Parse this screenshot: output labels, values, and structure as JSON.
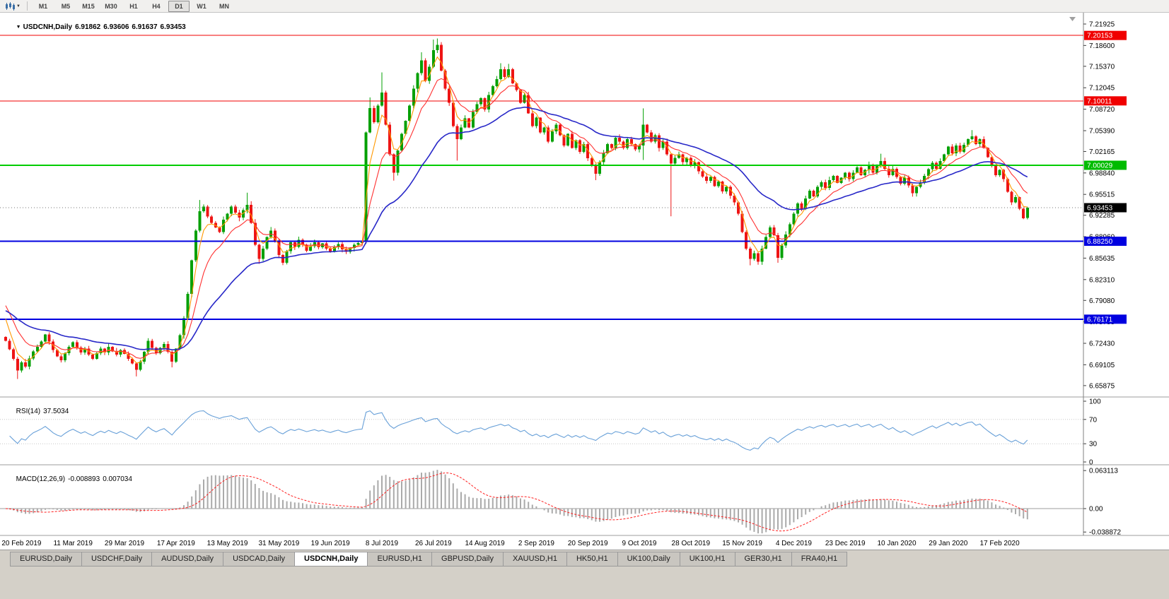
{
  "toolbar": {
    "timeframes": [
      "M1",
      "M5",
      "M15",
      "M30",
      "H1",
      "H4",
      "D1",
      "W1",
      "MN"
    ],
    "active_timeframe": "D1"
  },
  "chart": {
    "symbol_label": "USDCNH,Daily",
    "ohlc": {
      "open": "6.91862",
      "high": "6.93606",
      "low": "6.91637",
      "close": "6.93453"
    },
    "price_axis": [
      "7.21925",
      "7.18600",
      "7.15370",
      "7.12045",
      "7.08720",
      "7.05390",
      "7.02165",
      "6.98840",
      "6.95515",
      "6.92285",
      "6.88960",
      "6.85635",
      "6.82310",
      "6.79080",
      "6.75755",
      "6.72430",
      "6.69105",
      "6.65875"
    ],
    "levels": [
      {
        "name": "resistance-upper",
        "value": "7.20153",
        "price": 7.20153,
        "color": "#f00000",
        "box": "#f00000",
        "width": 1
      },
      {
        "name": "resistance-mid",
        "value": "7.10011",
        "price": 7.10011,
        "color": "#f00000",
        "box": "#f00000",
        "width": 1
      },
      {
        "name": "pivot-green",
        "value": "7.00029",
        "price": 7.00029,
        "color": "#00cc00",
        "box": "#00bb00",
        "width": 2
      },
      {
        "name": "current-price",
        "value": "6.93453",
        "price": 6.93453,
        "color": "#777777",
        "box": "#000000",
        "width": 1,
        "style": "dotted"
      },
      {
        "name": "support-upper",
        "value": "6.88250",
        "price": 6.8825,
        "color": "#0000e0",
        "box": "#0000e0",
        "width": 2
      },
      {
        "name": "support-lower",
        "value": "6.76171",
        "price": 6.76171,
        "color": "#0000e0",
        "box": "#0000e0",
        "width": 2
      }
    ]
  },
  "rsi": {
    "name": "RSI(14)",
    "value": "37.5034",
    "axis_labels": [
      "100",
      "70",
      "30",
      "0"
    ],
    "guide_levels": [
      70,
      30
    ]
  },
  "macd": {
    "name": "MACD(12,26,9)",
    "value": "-0.008893",
    "signal_value": "0.007034",
    "axis_labels": [
      "0.063113",
      "0.00",
      "-0.038872"
    ]
  },
  "tabs": [
    {
      "label": "EURUSD,Daily"
    },
    {
      "label": "USDCHF,Daily"
    },
    {
      "label": "AUDUSD,Daily"
    },
    {
      "label": "USDCAD,Daily"
    },
    {
      "label": "USDCNH,Daily",
      "active": true
    },
    {
      "label": "EURUSD,H1"
    },
    {
      "label": "GBPUSD,Daily"
    },
    {
      "label": "XAUUSD,H1"
    },
    {
      "label": "HK50,H1"
    },
    {
      "label": "UK100,Daily"
    },
    {
      "label": "UK100,H1"
    },
    {
      "label": "GER30,H1"
    },
    {
      "label": "FRA40,H1"
    }
  ],
  "chart_data": {
    "type": "candlestick",
    "symbol": "USDCNH",
    "timeframe": "Daily",
    "y_axis_range": [
      6.6455,
      7.228
    ],
    "x_axis_dates": [
      "20 Feb 2019",
      "11 Mar 2019",
      "29 Mar 2019",
      "17 Apr 2019",
      "13 May 2019",
      "31 May 2019",
      "19 Jun 2019",
      "8 Jul 2019",
      "26 Jul 2019",
      "14 Aug 2019",
      "2 Sep 2019",
      "20 Sep 2019",
      "9 Oct 2019",
      "28 Oct 2019",
      "15 Nov 2019",
      "4 Dec 2019",
      "23 Dec 2019",
      "10 Jan 2020",
      "29 Jan 2020",
      "17 Feb 2020"
    ],
    "closes": [
      6.728,
      6.715,
      6.7,
      6.682,
      6.695,
      6.688,
      6.701,
      6.712,
      6.719,
      6.727,
      6.738,
      6.727,
      6.714,
      6.704,
      6.698,
      6.709,
      6.719,
      6.726,
      6.718,
      6.71,
      6.716,
      6.707,
      6.7,
      6.709,
      6.716,
      6.71,
      6.719,
      6.712,
      6.707,
      6.714,
      6.708,
      6.7,
      6.693,
      6.683,
      6.696,
      6.711,
      6.728,
      6.717,
      6.709,
      6.717,
      6.723,
      6.711,
      6.696,
      6.716,
      6.737,
      6.763,
      6.801,
      6.853,
      6.899,
      6.929,
      6.936,
      6.921,
      6.911,
      6.904,
      6.897,
      6.916,
      6.925,
      6.936,
      6.927,
      6.919,
      6.931,
      6.939,
      6.911,
      6.877,
      6.855,
      6.871,
      6.889,
      6.899,
      6.883,
      6.861,
      6.849,
      6.867,
      6.881,
      6.874,
      6.885,
      6.877,
      6.868,
      6.875,
      6.881,
      6.873,
      6.879,
      6.871,
      6.866,
      6.873,
      6.878,
      6.87,
      6.866,
      6.872,
      6.877,
      6.88,
      6.882,
      7.051,
      7.089,
      7.067,
      7.093,
      7.113,
      7.063,
      7.017,
      6.989,
      7.023,
      7.049,
      7.069,
      7.093,
      7.119,
      7.143,
      7.163,
      7.131,
      7.153,
      7.179,
      7.187,
      7.147,
      7.119,
      7.097,
      7.061,
      7.041,
      7.059,
      7.073,
      7.059,
      7.083,
      7.095,
      7.104,
      7.087,
      7.109,
      7.123,
      7.134,
      7.149,
      7.137,
      7.149,
      7.127,
      7.117,
      7.097,
      7.109,
      7.081,
      7.061,
      7.074,
      7.051,
      7.059,
      7.037,
      7.053,
      7.063,
      7.047,
      7.031,
      7.049,
      7.027,
      7.039,
      7.021,
      7.033,
      7.011,
      7.001,
      6.987,
      7.005,
      7.019,
      7.033,
      7.027,
      7.043,
      7.037,
      7.027,
      7.041,
      7.033,
      7.025,
      7.031,
      7.063,
      7.051,
      7.037,
      7.047,
      7.027,
      7.037,
      7.017,
      7.003,
      7.012,
      7.017,
      7.005,
      7.012,
      6.999,
      7.005,
      6.991,
      6.983,
      6.976,
      6.982,
      6.968,
      6.975,
      6.96,
      6.967,
      6.953,
      6.943,
      6.925,
      6.897,
      6.871,
      6.855,
      6.864,
      6.851,
      6.871,
      6.889,
      6.904,
      6.892,
      6.857,
      6.876,
      6.893,
      6.909,
      6.925,
      6.941,
      6.933,
      6.949,
      6.961,
      6.952,
      6.967,
      6.974,
      6.965,
      6.977,
      6.984,
      6.973,
      6.981,
      6.989,
      6.979,
      6.989,
      6.997,
      6.985,
      6.993,
      7.001,
      6.989,
      6.999,
      7.007,
      6.995,
      6.985,
      6.995,
      6.982,
      6.972,
      6.981,
      6.969,
      6.957,
      6.967,
      6.974,
      6.984,
      6.994,
      7.004,
      6.995,
      7.007,
      7.017,
      7.029,
      7.019,
      7.031,
      7.021,
      7.032,
      7.041,
      7.045,
      7.033,
      7.041,
      7.027,
      7.013,
      6.999,
      6.985,
      6.993,
      6.979,
      6.959,
      6.943,
      6.951,
      6.933,
      6.918,
      6.93453
    ],
    "wick_overrides": {
      "3": {
        "low": 6.669
      },
      "33": {
        "low": 6.673
      },
      "42": {
        "low": 6.687
      },
      "49": {
        "high": 6.9465
      },
      "61": {
        "high": 6.9578
      },
      "64": {
        "low": 6.8475
      },
      "70": {
        "low": 6.8455
      },
      "92": {
        "high": 7.1055
      },
      "95": {
        "high": 7.1442
      },
      "98": {
        "low": 6.9765
      },
      "105": {
        "high": 7.1755
      },
      "108": {
        "high": 7.1952
      },
      "109": {
        "high": 7.1968
      },
      "114": {
        "low": 7.0075
      },
      "125": {
        "high": 7.1585
      },
      "127": {
        "high": 7.1575
      },
      "149": {
        "low": 6.9772
      },
      "161": {
        "high": 7.0885,
        "low": 7.0085
      },
      "168": {
        "low": 6.9212
      },
      "188": {
        "low": 6.8452
      },
      "190": {
        "low": 6.8462
      },
      "195": {
        "low": 6.8492
      },
      "221": {
        "high": 7.0182
      },
      "244": {
        "high": 7.0548
      }
    },
    "last_ohlc": {
      "open": 6.91862,
      "high": 6.93606,
      "low": 6.91637,
      "close": 6.93453
    },
    "moving_averages": [
      {
        "name": "fast-orange",
        "period": 4,
        "seed": 6.785,
        "color": "#ff9800",
        "width": 1.1
      },
      {
        "name": "mid-red",
        "period": 10,
        "seed": 6.795,
        "color": "#ff3030",
        "width": 1.1
      },
      {
        "name": "slow-blue",
        "period": 32,
        "seed": 6.778,
        "color": "#2828c8",
        "width": 1.6
      }
    ],
    "rsi": {
      "period": 14,
      "current": 37.5034
    },
    "macd": {
      "fast": 12,
      "slow": 26,
      "signal": 9,
      "current": -0.008893,
      "current_signal": 0.007034,
      "scale_max": 0.063113,
      "scale_min": -0.038872
    },
    "colors": {
      "up": "#05a005",
      "down": "#ee1414",
      "rsi": "#68a0d8",
      "macd_hist": "#aaaaaa",
      "macd_signal": "#ff2020"
    }
  }
}
